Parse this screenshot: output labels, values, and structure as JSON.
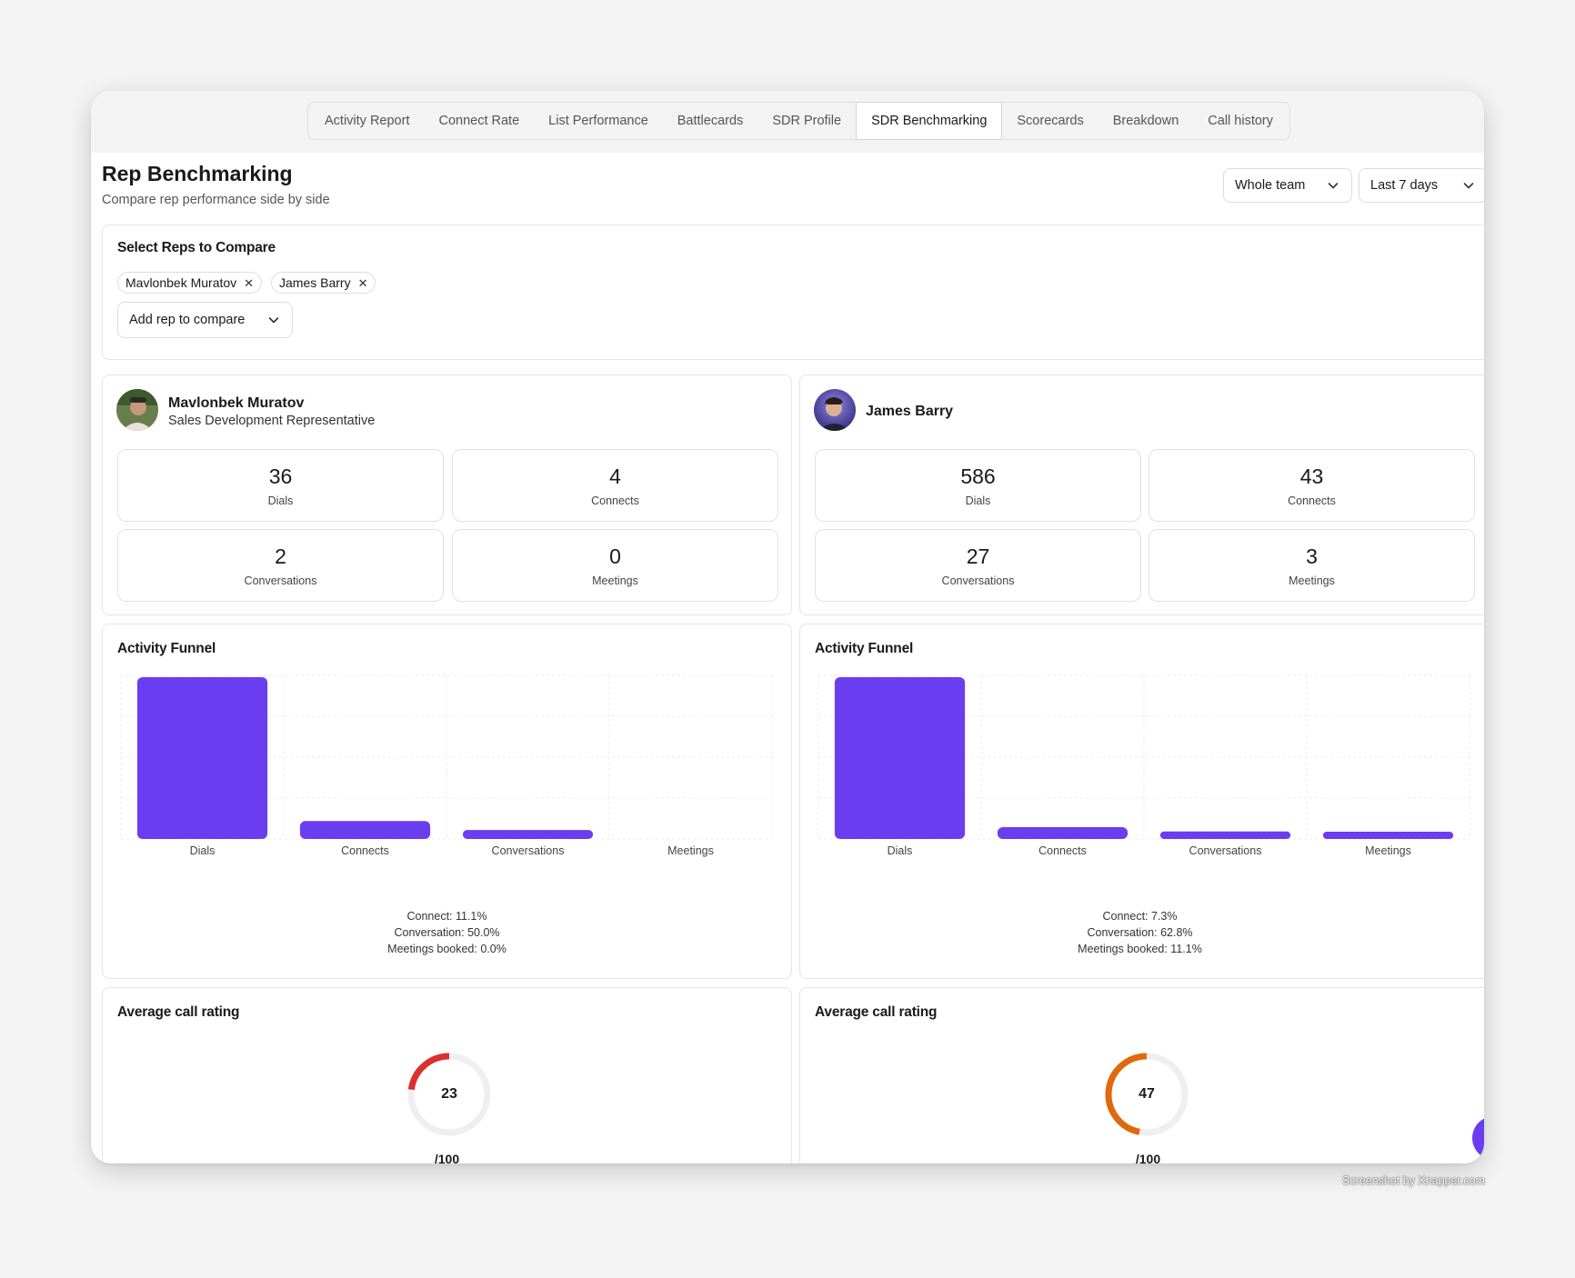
{
  "tabs": [
    {
      "label": "Activity Report"
    },
    {
      "label": "Connect Rate"
    },
    {
      "label": "List Performance"
    },
    {
      "label": "Battlecards"
    },
    {
      "label": "SDR Profile"
    },
    {
      "label": "SDR Benchmarking",
      "active": true
    },
    {
      "label": "Scorecards"
    },
    {
      "label": "Breakdown"
    },
    {
      "label": "Call history"
    }
  ],
  "header": {
    "title": "Rep Benchmarking",
    "subtitle": "Compare rep performance side by side"
  },
  "filters": {
    "team": "Whole team",
    "range": "Last 7 days"
  },
  "selector": {
    "title": "Select Reps to Compare",
    "chips": [
      "Mavlonbek Muratov",
      "James Barry"
    ],
    "add_label": "Add rep to compare"
  },
  "colors": {
    "accent": "#6b3df0",
    "gauge_low": "#dc2f2f",
    "gauge_mid": "#e0690f",
    "gauge_track": "#efefef"
  },
  "reps": [
    {
      "name": "Mavlonbek Muratov",
      "role": "Sales Development Representative",
      "stats": [
        {
          "value": "36",
          "label": "Dials"
        },
        {
          "value": "4",
          "label": "Connects"
        },
        {
          "value": "2",
          "label": "Conversations"
        },
        {
          "value": "0",
          "label": "Meetings"
        }
      ],
      "funnel_title": "Activity Funnel",
      "rates": [
        "Connect: 11.1%",
        "Conversation: 50.0%",
        "Meetings booked: 0.0%"
      ],
      "rating_title": "Average call rating",
      "rating": "23",
      "rating_max": "/100"
    },
    {
      "name": "James Barry",
      "role": "",
      "stats": [
        {
          "value": "586",
          "label": "Dials"
        },
        {
          "value": "43",
          "label": "Connects"
        },
        {
          "value": "27",
          "label": "Conversations"
        },
        {
          "value": "3",
          "label": "Meetings"
        }
      ],
      "funnel_title": "Activity Funnel",
      "rates": [
        "Connect: 7.3%",
        "Conversation: 62.8%",
        "Meetings booked: 11.1%"
      ],
      "rating_title": "Average call rating",
      "rating": "47",
      "rating_max": "/100"
    }
  ],
  "chart_data": [
    {
      "type": "bar",
      "title": "Activity Funnel",
      "categories": [
        "Dials",
        "Connects",
        "Conversations",
        "Meetings"
      ],
      "values": [
        36,
        4,
        2,
        0
      ]
    },
    {
      "type": "bar",
      "title": "Activity Funnel",
      "categories": [
        "Dials",
        "Connects",
        "Conversations",
        "Meetings"
      ],
      "values": [
        586,
        43,
        27,
        3
      ]
    }
  ],
  "footer": {
    "credit": "Screenshot by Xnapper.com"
  }
}
